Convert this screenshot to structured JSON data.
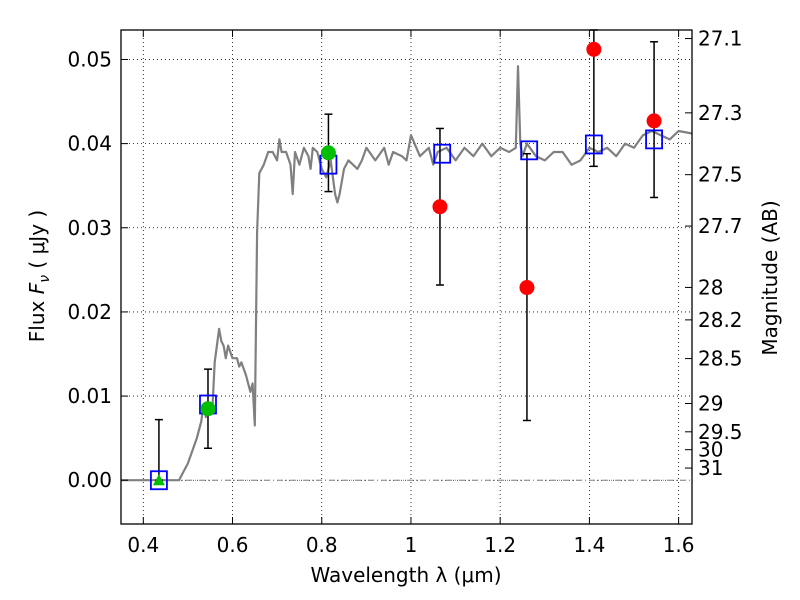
{
  "chart_data": {
    "type": "scatter",
    "title": "",
    "xlabel": "Wavelength  λ (μm)",
    "ylabel": "Flux  F_ν  ( μJy )",
    "ylabel_parts": {
      "prefix": "Flux  ",
      "symbol": "F",
      "subscript": "ν",
      "unit": "  ( μJy )"
    },
    "y2label": "Magnitude (AB)",
    "xlim": [
      0.35,
      1.63
    ],
    "ylim": [
      -0.0052,
      0.0535
    ],
    "grid": true,
    "x_ticks": [
      {
        "value": 0.4,
        "label": "0.4"
      },
      {
        "value": 0.6,
        "label": "0.6"
      },
      {
        "value": 0.8,
        "label": "0.8"
      },
      {
        "value": 1.0,
        "label": "1"
      },
      {
        "value": 1.2,
        "label": "1.2"
      },
      {
        "value": 1.4,
        "label": "1.4"
      },
      {
        "value": 1.6,
        "label": "1.6"
      }
    ],
    "y_ticks": [
      {
        "value": 0.0,
        "label": "0.00"
      },
      {
        "value": 0.01,
        "label": "0.01"
      },
      {
        "value": 0.02,
        "label": "0.02"
      },
      {
        "value": 0.03,
        "label": "0.03"
      },
      {
        "value": 0.04,
        "label": "0.04"
      },
      {
        "value": 0.05,
        "label": "0.05"
      }
    ],
    "mag_ticks": [
      {
        "value": 27.1,
        "label": "27.1"
      },
      {
        "value": 27.3,
        "label": "27.3"
      },
      {
        "value": 27.5,
        "label": "27.5"
      },
      {
        "value": 27.7,
        "label": "27.7"
      },
      {
        "value": 28.0,
        "label": "28"
      },
      {
        "value": 28.2,
        "label": "28.2"
      },
      {
        "value": 28.5,
        "label": "28.5"
      },
      {
        "value": 29.0,
        "label": "29"
      },
      {
        "value": 29.5,
        "label": "29.5"
      },
      {
        "value": 30.0,
        "label": "30"
      },
      {
        "value": 31.0,
        "label": "31"
      }
    ],
    "series": [
      {
        "name": "model spectrum",
        "type": "line",
        "color": "#808080",
        "x": [
          0.35,
          0.48,
          0.5,
          0.52,
          0.53,
          0.535,
          0.54,
          0.55,
          0.555,
          0.56,
          0.57,
          0.575,
          0.58,
          0.585,
          0.59,
          0.6,
          0.61,
          0.615,
          0.62,
          0.63,
          0.64,
          0.645,
          0.65,
          0.655,
          0.66,
          0.67,
          0.68,
          0.69,
          0.7,
          0.705,
          0.71,
          0.72,
          0.73,
          0.735,
          0.74,
          0.75,
          0.76,
          0.77,
          0.775,
          0.78,
          0.79,
          0.8,
          0.81,
          0.82,
          0.83,
          0.835,
          0.84,
          0.85,
          0.86,
          0.87,
          0.88,
          0.89,
          0.9,
          0.92,
          0.94,
          0.95,
          0.96,
          0.98,
          0.99,
          1.0,
          1.02,
          1.04,
          1.05,
          1.06,
          1.08,
          1.1,
          1.12,
          1.14,
          1.16,
          1.18,
          1.2,
          1.22,
          1.235,
          1.24,
          1.245,
          1.25,
          1.26,
          1.28,
          1.3,
          1.32,
          1.34,
          1.36,
          1.38,
          1.4,
          1.42,
          1.44,
          1.46,
          1.48,
          1.5,
          1.52,
          1.54,
          1.56,
          1.58,
          1.6,
          1.63
        ],
        "y": [
          0.0,
          0.0,
          0.002,
          0.005,
          0.007,
          0.009,
          0.0075,
          0.009,
          0.0085,
          0.014,
          0.018,
          0.0165,
          0.016,
          0.0145,
          0.016,
          0.0145,
          0.0145,
          0.0135,
          0.014,
          0.0125,
          0.0105,
          0.0115,
          0.0065,
          0.0295,
          0.0365,
          0.0375,
          0.039,
          0.039,
          0.038,
          0.0405,
          0.039,
          0.039,
          0.0375,
          0.034,
          0.039,
          0.0375,
          0.0395,
          0.0385,
          0.037,
          0.0395,
          0.039,
          0.037,
          0.036,
          0.038,
          0.034,
          0.033,
          0.034,
          0.037,
          0.038,
          0.0375,
          0.037,
          0.038,
          0.0395,
          0.038,
          0.0395,
          0.0375,
          0.039,
          0.0385,
          0.038,
          0.041,
          0.0385,
          0.0395,
          0.0375,
          0.039,
          0.0395,
          0.038,
          0.0395,
          0.0385,
          0.04,
          0.0385,
          0.0395,
          0.039,
          0.0395,
          0.0492,
          0.04,
          0.0385,
          0.04,
          0.0385,
          0.038,
          0.039,
          0.039,
          0.0375,
          0.038,
          0.0395,
          0.039,
          0.0395,
          0.0385,
          0.04,
          0.0395,
          0.041,
          0.0415,
          0.041,
          0.0405,
          0.0415,
          0.0412
        ]
      },
      {
        "name": "model photometry",
        "type": "scatter",
        "marker": "square-open",
        "color": "#0000ff",
        "x": [
          0.435,
          0.545,
          0.815,
          1.07,
          1.265,
          1.41,
          1.545
        ],
        "y": [
          0.0,
          0.009,
          0.0375,
          0.0388,
          0.0392,
          0.0399,
          0.0405
        ]
      },
      {
        "name": "observed flux (red)",
        "type": "scatter",
        "marker": "circle",
        "color": "#ff0000",
        "x": [
          1.065,
          1.26,
          1.41,
          1.545
        ],
        "y": [
          0.0325,
          0.0229,
          0.0512,
          0.0427
        ],
        "yerr_low": [
          0.0232,
          0.0071,
          0.0373,
          0.0336
        ],
        "yerr_high": [
          0.0418,
          0.0388,
          0.0535,
          0.0521
        ]
      },
      {
        "name": "observed flux (green)",
        "type": "scatter",
        "marker": "circle",
        "color": "#00bf00",
        "x": [
          0.545,
          0.815
        ],
        "y": [
          0.0085,
          0.0389
        ],
        "yerr_low": [
          0.0038,
          0.0343
        ],
        "yerr_high": [
          0.0132,
          0.0435
        ]
      },
      {
        "name": "upper limit",
        "type": "scatter",
        "marker": "triangle-up",
        "color": "#00bf00",
        "x": [
          0.435
        ],
        "y": [
          0.0
        ],
        "yerr_low": [
          0.0
        ],
        "yerr_high": [
          0.0072
        ]
      }
    ],
    "zero_line": {
      "y": 0.0,
      "style": "dash-dot",
      "color": "#808080"
    }
  }
}
